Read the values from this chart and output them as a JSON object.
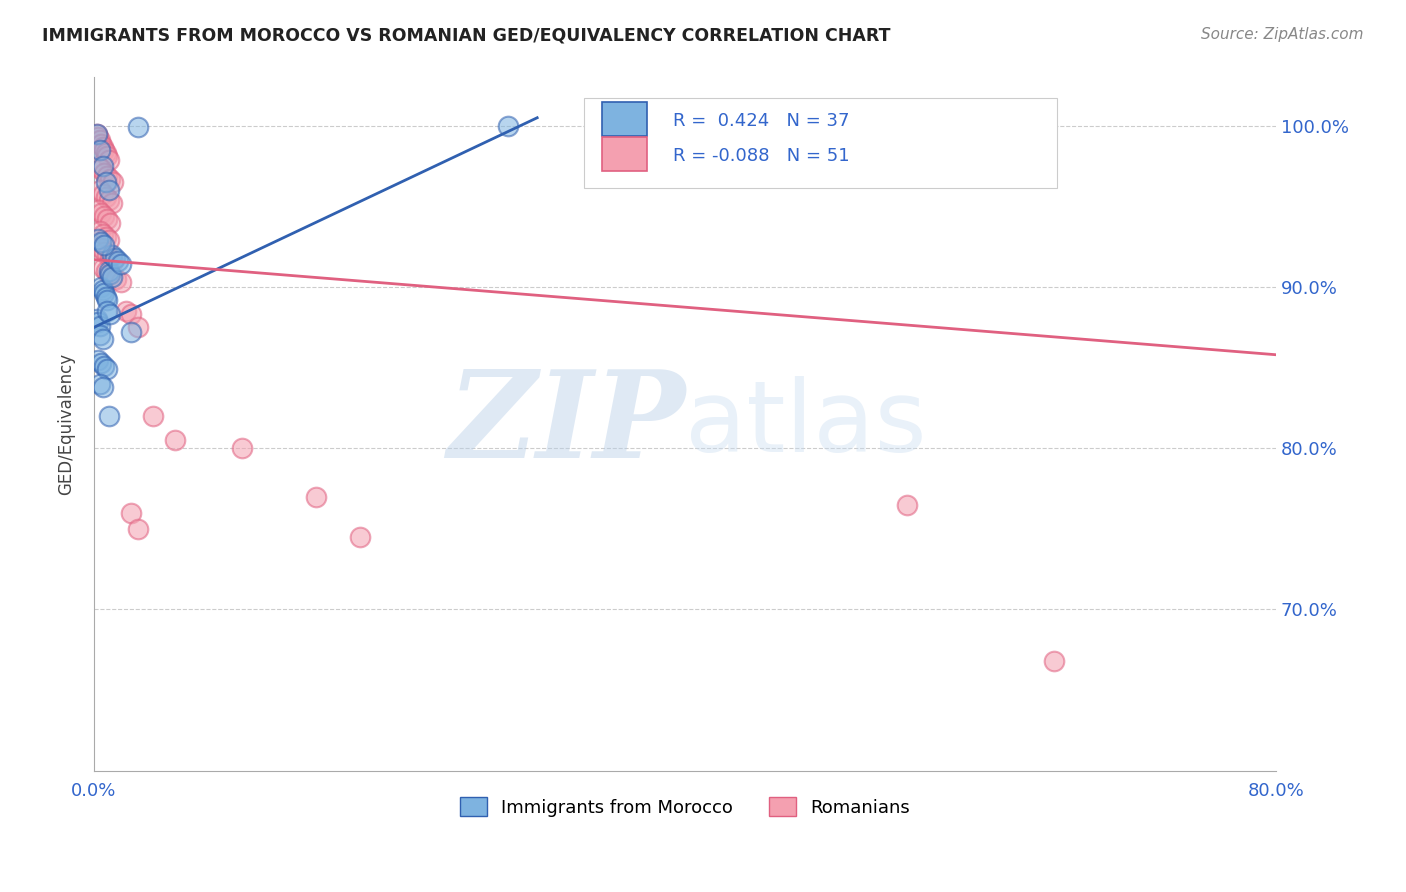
{
  "title": "IMMIGRANTS FROM MOROCCO VS ROMANIAN GED/EQUIVALENCY CORRELATION CHART",
  "source": "Source: ZipAtlas.com",
  "ylabel": "GED/Equivalency",
  "yticks": [
    "100.0%",
    "90.0%",
    "80.0%",
    "70.0%"
  ],
  "ytick_values": [
    1.0,
    0.9,
    0.8,
    0.7
  ],
  "xlim": [
    0.0,
    0.8
  ],
  "ylim": [
    0.6,
    1.03
  ],
  "legend_label1": "Immigrants from Morocco",
  "legend_label2": "Romanians",
  "R1": 0.424,
  "N1": 37,
  "R2": -0.088,
  "N2": 51,
  "color_morocco": "#7EB3E0",
  "color_romanian": "#F4A0B0",
  "color_line_morocco": "#3060B0",
  "color_line_romanian": "#E06080",
  "watermark_zip": "ZIP",
  "watermark_atlas": "atlas",
  "morocco_line_x": [
    0.0,
    0.3
  ],
  "morocco_line_y": [
    0.875,
    1.005
  ],
  "romanian_line_x": [
    0.0,
    0.8
  ],
  "romanian_line_y": [
    0.917,
    0.858
  ],
  "morocco_x": [
    0.002,
    0.003,
    0.004,
    0.005,
    0.006,
    0.007,
    0.008,
    0.009,
    0.01,
    0.011,
    0.012,
    0.002,
    0.004,
    0.006,
    0.008,
    0.01,
    0.012,
    0.014,
    0.016,
    0.018,
    0.003,
    0.005,
    0.007,
    0.009,
    0.011,
    0.004,
    0.006,
    0.025,
    0.03,
    0.003,
    0.005,
    0.007,
    0.009,
    0.004,
    0.006,
    0.01,
    0.28
  ],
  "morocco_y": [
    0.88,
    0.878,
    0.876,
    0.9,
    0.898,
    0.896,
    0.894,
    0.892,
    0.91,
    0.908,
    0.906,
    0.995,
    0.985,
    0.975,
    0.965,
    0.96,
    0.92,
    0.918,
    0.916,
    0.914,
    0.93,
    0.928,
    0.926,
    0.885,
    0.883,
    0.87,
    0.868,
    0.872,
    0.999,
    0.855,
    0.853,
    0.851,
    0.849,
    0.84,
    0.838,
    0.82,
    1.0
  ],
  "romanian_x": [
    0.002,
    0.003,
    0.004,
    0.005,
    0.006,
    0.007,
    0.008,
    0.009,
    0.01,
    0.003,
    0.005,
    0.007,
    0.009,
    0.011,
    0.013,
    0.004,
    0.006,
    0.008,
    0.01,
    0.012,
    0.003,
    0.005,
    0.007,
    0.009,
    0.011,
    0.004,
    0.006,
    0.008,
    0.01,
    0.005,
    0.007,
    0.009,
    0.011,
    0.013,
    0.006,
    0.008,
    0.01,
    0.015,
    0.018,
    0.022,
    0.025,
    0.03,
    0.04,
    0.055,
    0.025,
    0.03,
    0.55,
    0.65,
    0.1,
    0.15,
    0.18
  ],
  "romanian_y": [
    0.995,
    0.993,
    0.991,
    0.989,
    0.987,
    0.985,
    0.983,
    0.981,
    0.979,
    0.975,
    0.973,
    0.971,
    0.969,
    0.967,
    0.965,
    0.96,
    0.958,
    0.956,
    0.954,
    0.952,
    0.948,
    0.946,
    0.944,
    0.942,
    0.94,
    0.935,
    0.933,
    0.931,
    0.929,
    0.924,
    0.922,
    0.92,
    0.918,
    0.916,
    0.912,
    0.91,
    0.908,
    0.905,
    0.903,
    0.885,
    0.883,
    0.875,
    0.82,
    0.805,
    0.76,
    0.75,
    0.765,
    0.668,
    0.8,
    0.77,
    0.745
  ]
}
